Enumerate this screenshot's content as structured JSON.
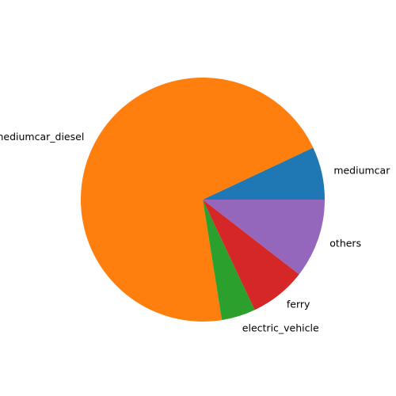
{
  "chart_data": {
    "type": "pie",
    "start_angle_deg": 0,
    "direction": "counterclockwise",
    "slices": [
      {
        "label": "mediumcar",
        "value": 7.0,
        "color": "#1f77b4"
      },
      {
        "label": "mediumcar_diesel",
        "value": 70.5,
        "color": "#ff7f0e"
      },
      {
        "label": "electric_vehicle",
        "value": 4.5,
        "color": "#2ca02c"
      },
      {
        "label": "ferry",
        "value": 7.5,
        "color": "#d62728"
      },
      {
        "label": "others",
        "value": 10.5,
        "color": "#9467bd"
      }
    ]
  }
}
